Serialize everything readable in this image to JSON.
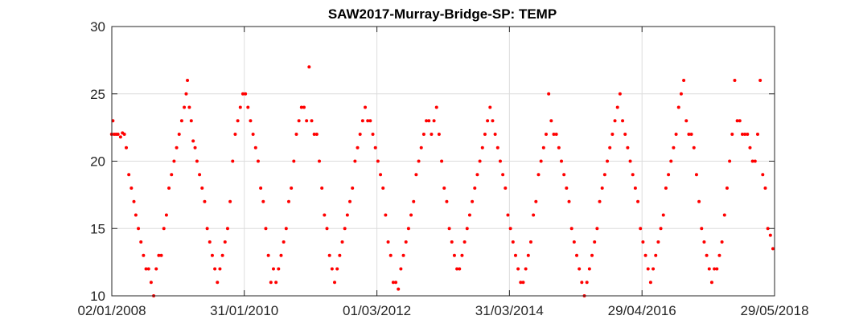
{
  "chart_data": {
    "type": "scatter",
    "title": "SAW2017-Murray-Bridge-SP: TEMP",
    "xlabel": "",
    "ylabel": "",
    "xlim": [
      "2008-01-02",
      "2018-05-29"
    ],
    "ylim": [
      10,
      30
    ],
    "x_tick_labels": [
      "02/01/2008",
      "31/01/2010",
      "01/03/2012",
      "31/03/2014",
      "29/04/2016",
      "29/05/2018"
    ],
    "y_tick_labels": [
      "10",
      "15",
      "20",
      "25",
      "30"
    ],
    "grid": true,
    "marker_color": "#ff0000",
    "series": [
      {
        "name": "TEMP",
        "points": [
          [
            2008.0,
            22
          ],
          [
            2008.02,
            23
          ],
          [
            2008.04,
            22
          ],
          [
            2008.07,
            22
          ],
          [
            2008.1,
            22
          ],
          [
            2008.14,
            21.8
          ],
          [
            2008.17,
            22.1
          ],
          [
            2008.2,
            22
          ],
          [
            2008.23,
            21
          ],
          [
            2008.27,
            19
          ],
          [
            2008.31,
            18
          ],
          [
            2008.35,
            17
          ],
          [
            2008.38,
            16
          ],
          [
            2008.42,
            15
          ],
          [
            2008.46,
            14
          ],
          [
            2008.5,
            13
          ],
          [
            2008.54,
            12
          ],
          [
            2008.58,
            12
          ],
          [
            2008.62,
            11
          ],
          [
            2008.66,
            10
          ],
          [
            2008.7,
            12
          ],
          [
            2008.74,
            13
          ],
          [
            2008.78,
            13
          ],
          [
            2008.82,
            15
          ],
          [
            2008.86,
            16
          ],
          [
            2008.9,
            18
          ],
          [
            2008.94,
            19
          ],
          [
            2008.98,
            20
          ],
          [
            2009.02,
            21
          ],
          [
            2009.06,
            22
          ],
          [
            2009.1,
            23
          ],
          [
            2009.14,
            24
          ],
          [
            2009.17,
            25
          ],
          [
            2009.19,
            26
          ],
          [
            2009.22,
            24
          ],
          [
            2009.25,
            23
          ],
          [
            2009.28,
            21.5
          ],
          [
            2009.31,
            21
          ],
          [
            2009.34,
            20
          ],
          [
            2009.38,
            19
          ],
          [
            2009.42,
            18
          ],
          [
            2009.46,
            17
          ],
          [
            2009.5,
            15
          ],
          [
            2009.54,
            14
          ],
          [
            2009.58,
            13
          ],
          [
            2009.62,
            12
          ],
          [
            2009.66,
            11
          ],
          [
            2009.7,
            12
          ],
          [
            2009.74,
            13
          ],
          [
            2009.78,
            14
          ],
          [
            2009.82,
            15
          ],
          [
            2009.86,
            17
          ],
          [
            2009.9,
            20
          ],
          [
            2009.94,
            22
          ],
          [
            2009.98,
            23
          ],
          [
            2010.02,
            24
          ],
          [
            2010.06,
            25
          ],
          [
            2010.1,
            25
          ],
          [
            2010.14,
            24
          ],
          [
            2010.18,
            23
          ],
          [
            2010.22,
            22
          ],
          [
            2010.26,
            21
          ],
          [
            2010.3,
            20
          ],
          [
            2010.34,
            18
          ],
          [
            2010.38,
            17
          ],
          [
            2010.42,
            15
          ],
          [
            2010.46,
            13
          ],
          [
            2010.5,
            11
          ],
          [
            2010.54,
            12
          ],
          [
            2010.58,
            11
          ],
          [
            2010.62,
            12
          ],
          [
            2010.66,
            13
          ],
          [
            2010.7,
            14
          ],
          [
            2010.74,
            15
          ],
          [
            2010.78,
            17
          ],
          [
            2010.82,
            18
          ],
          [
            2010.86,
            20
          ],
          [
            2010.9,
            22
          ],
          [
            2010.94,
            23
          ],
          [
            2010.98,
            24
          ],
          [
            2011.02,
            24
          ],
          [
            2011.06,
            23
          ],
          [
            2011.1,
            27
          ],
          [
            2011.14,
            23
          ],
          [
            2011.18,
            22
          ],
          [
            2011.22,
            22
          ],
          [
            2011.26,
            20
          ],
          [
            2011.3,
            18
          ],
          [
            2011.34,
            16
          ],
          [
            2011.38,
            15
          ],
          [
            2011.42,
            13
          ],
          [
            2011.46,
            12
          ],
          [
            2011.5,
            11
          ],
          [
            2011.54,
            12
          ],
          [
            2011.58,
            13
          ],
          [
            2011.62,
            14
          ],
          [
            2011.66,
            15
          ],
          [
            2011.7,
            16
          ],
          [
            2011.74,
            17
          ],
          [
            2011.78,
            18
          ],
          [
            2011.82,
            20
          ],
          [
            2011.86,
            21
          ],
          [
            2011.9,
            22
          ],
          [
            2011.94,
            23
          ],
          [
            2011.98,
            24
          ],
          [
            2012.02,
            23
          ],
          [
            2012.06,
            23
          ],
          [
            2012.1,
            22
          ],
          [
            2012.14,
            21
          ],
          [
            2012.18,
            20
          ],
          [
            2012.22,
            19
          ],
          [
            2012.26,
            18
          ],
          [
            2012.3,
            16
          ],
          [
            2012.34,
            14
          ],
          [
            2012.38,
            13
          ],
          [
            2012.42,
            11
          ],
          [
            2012.46,
            11
          ],
          [
            2012.5,
            10.5
          ],
          [
            2012.54,
            12
          ],
          [
            2012.58,
            13
          ],
          [
            2012.62,
            14
          ],
          [
            2012.66,
            15
          ],
          [
            2012.7,
            16
          ],
          [
            2012.74,
            17
          ],
          [
            2012.78,
            19
          ],
          [
            2012.82,
            20
          ],
          [
            2012.86,
            21
          ],
          [
            2012.9,
            22
          ],
          [
            2012.94,
            23
          ],
          [
            2012.98,
            23
          ],
          [
            2013.02,
            22
          ],
          [
            2013.06,
            23
          ],
          [
            2013.1,
            24
          ],
          [
            2013.14,
            22
          ],
          [
            2013.18,
            20
          ],
          [
            2013.22,
            18
          ],
          [
            2013.26,
            17
          ],
          [
            2013.3,
            15
          ],
          [
            2013.34,
            14
          ],
          [
            2013.38,
            13
          ],
          [
            2013.42,
            12
          ],
          [
            2013.46,
            12
          ],
          [
            2013.5,
            13
          ],
          [
            2013.54,
            14
          ],
          [
            2013.58,
            15
          ],
          [
            2013.62,
            16
          ],
          [
            2013.66,
            17
          ],
          [
            2013.7,
            18
          ],
          [
            2013.74,
            19
          ],
          [
            2013.78,
            20
          ],
          [
            2013.82,
            21
          ],
          [
            2013.86,
            22
          ],
          [
            2013.9,
            23
          ],
          [
            2013.94,
            24
          ],
          [
            2013.98,
            23
          ],
          [
            2014.02,
            22
          ],
          [
            2014.06,
            21
          ],
          [
            2014.1,
            20
          ],
          [
            2014.14,
            19
          ],
          [
            2014.18,
            18
          ],
          [
            2014.22,
            16
          ],
          [
            2014.26,
            15
          ],
          [
            2014.3,
            14
          ],
          [
            2014.34,
            13
          ],
          [
            2014.38,
            12
          ],
          [
            2014.42,
            11
          ],
          [
            2014.46,
            11
          ],
          [
            2014.5,
            12
          ],
          [
            2014.54,
            13
          ],
          [
            2014.58,
            14
          ],
          [
            2014.62,
            16
          ],
          [
            2014.66,
            17
          ],
          [
            2014.7,
            19
          ],
          [
            2014.74,
            20
          ],
          [
            2014.78,
            21
          ],
          [
            2014.82,
            22
          ],
          [
            2014.86,
            25
          ],
          [
            2014.9,
            23
          ],
          [
            2014.94,
            22
          ],
          [
            2014.98,
            22
          ],
          [
            2015.02,
            21
          ],
          [
            2015.06,
            20
          ],
          [
            2015.1,
            19
          ],
          [
            2015.14,
            18
          ],
          [
            2015.18,
            17
          ],
          [
            2015.22,
            15
          ],
          [
            2015.26,
            14
          ],
          [
            2015.3,
            13
          ],
          [
            2015.34,
            12
          ],
          [
            2015.38,
            11
          ],
          [
            2015.42,
            10
          ],
          [
            2015.46,
            11
          ],
          [
            2015.5,
            12
          ],
          [
            2015.54,
            13
          ],
          [
            2015.58,
            14
          ],
          [
            2015.62,
            15
          ],
          [
            2015.66,
            17
          ],
          [
            2015.7,
            18
          ],
          [
            2015.74,
            19
          ],
          [
            2015.78,
            20
          ],
          [
            2015.82,
            21
          ],
          [
            2015.86,
            22
          ],
          [
            2015.9,
            23
          ],
          [
            2015.94,
            24
          ],
          [
            2015.98,
            25
          ],
          [
            2016.02,
            23
          ],
          [
            2016.06,
            22
          ],
          [
            2016.1,
            21
          ],
          [
            2016.14,
            20
          ],
          [
            2016.18,
            19
          ],
          [
            2016.22,
            18
          ],
          [
            2016.26,
            17
          ],
          [
            2016.3,
            15
          ],
          [
            2016.34,
            14
          ],
          [
            2016.38,
            13
          ],
          [
            2016.42,
            12
          ],
          [
            2016.46,
            11
          ],
          [
            2016.5,
            12
          ],
          [
            2016.54,
            13
          ],
          [
            2016.58,
            14
          ],
          [
            2016.62,
            15
          ],
          [
            2016.66,
            16
          ],
          [
            2016.7,
            18
          ],
          [
            2016.74,
            19
          ],
          [
            2016.78,
            20
          ],
          [
            2016.82,
            21
          ],
          [
            2016.86,
            22
          ],
          [
            2016.9,
            24
          ],
          [
            2016.94,
            25
          ],
          [
            2016.98,
            26
          ],
          [
            2017.02,
            23
          ],
          [
            2017.06,
            22
          ],
          [
            2017.1,
            22
          ],
          [
            2017.14,
            21
          ],
          [
            2017.18,
            19
          ],
          [
            2017.22,
            17
          ],
          [
            2017.26,
            15
          ],
          [
            2017.3,
            14
          ],
          [
            2017.34,
            13
          ],
          [
            2017.38,
            12
          ],
          [
            2017.42,
            11
          ],
          [
            2017.46,
            12
          ],
          [
            2017.5,
            12
          ],
          [
            2017.54,
            13
          ],
          [
            2017.58,
            14
          ],
          [
            2017.62,
            16
          ],
          [
            2017.66,
            18
          ],
          [
            2017.7,
            20
          ],
          [
            2017.74,
            22
          ],
          [
            2017.78,
            26
          ],
          [
            2017.82,
            23
          ],
          [
            2017.86,
            23
          ],
          [
            2017.9,
            22
          ],
          [
            2017.94,
            22
          ],
          [
            2017.98,
            22
          ],
          [
            2018.02,
            21
          ],
          [
            2018.06,
            20
          ],
          [
            2018.1,
            20
          ],
          [
            2018.14,
            22
          ],
          [
            2018.18,
            26
          ],
          [
            2018.22,
            19
          ],
          [
            2018.26,
            18
          ],
          [
            2018.3,
            15
          ],
          [
            2018.34,
            14.5
          ],
          [
            2018.38,
            13.5
          ]
        ]
      }
    ]
  }
}
